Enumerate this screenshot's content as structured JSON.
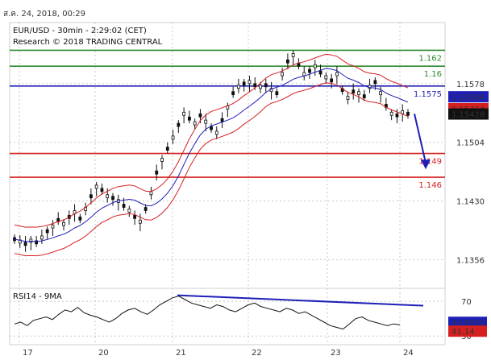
{
  "header": {
    "date_text": "ส.ค. 24, 2018, 00:29",
    "title": "EUR/USD - 30min - 2:29:02 (CET)",
    "subtitle": "Research © 2018 TRADING CENTRAL"
  },
  "colors": {
    "green": "#2e8b2e",
    "blue": "#1f1fb8",
    "red": "#d62020",
    "grid": "#c8c8c8",
    "candles": "#111111"
  },
  "chart_data": {
    "type": "candlestick",
    "price_axis": {
      "ticks": [
        "1.1578",
        "1.1504",
        "1.1430",
        "1.1356"
      ],
      "ylim": [
        1.132,
        1.1655
      ]
    },
    "x_axis": {
      "labels": [
        "17",
        "20",
        "21",
        "22",
        "23",
        "24"
      ]
    },
    "levels": [
      {
        "label": "1.162",
        "value": 1.162,
        "color": "green"
      },
      {
        "label": "1.16",
        "value": 1.16,
        "color": "green"
      },
      {
        "label": "1.1575",
        "value": 1.1575,
        "color": "blue"
      },
      {
        "label": "1.149",
        "value": 1.149,
        "color": "red"
      },
      {
        "label": "1.146",
        "value": 1.146,
        "color": "red"
      }
    ],
    "price_badges": [
      {
        "label": "1.15584",
        "value": 1.15584,
        "bg": "#1f1fb8",
        "fg": "#ffffff"
      },
      {
        "label": "1.15464",
        "value": 1.15464,
        "bg": "#d62020",
        "fg": "#ffffff"
      },
      {
        "label": "1.15428",
        "value": 1.15428,
        "bg": "#111111",
        "fg": "#ffffff"
      }
    ],
    "close_series": [
      1.1382,
      1.1379,
      1.1376,
      1.138,
      1.1378,
      1.1384,
      1.1392,
      1.1398,
      1.1406,
      1.1401,
      1.141,
      1.1416,
      1.1408,
      1.142,
      1.1436,
      1.1448,
      1.1444,
      1.1436,
      1.1434,
      1.143,
      1.1424,
      1.1418,
      1.141,
      1.1404,
      1.142,
      1.144,
      1.1466,
      1.1482,
      1.1496,
      1.151,
      1.1526,
      1.154,
      1.1534,
      1.1528,
      1.1538,
      1.153,
      1.1522,
      1.1516,
      1.1532,
      1.1548,
      1.1566,
      1.1574,
      1.1578,
      1.158,
      1.1576,
      1.1574,
      1.1576,
      1.157,
      1.1566,
      1.159,
      1.1606,
      1.1614,
      1.1602,
      1.159,
      1.1594,
      1.16,
      1.1592,
      1.1586,
      1.1582,
      1.159,
      1.157,
      1.156,
      1.1568,
      1.1566,
      1.1562,
      1.1574,
      1.158,
      1.1566,
      1.155,
      1.154,
      1.1538,
      1.1542,
      1.154
    ],
    "forecast": {
      "from": 1.154,
      "to": 1.1472
    },
    "rsi": {
      "label": "RSI14 - 9MA",
      "ticks": [
        "70",
        "30"
      ],
      "ylim": [
        20,
        85
      ],
      "badges": [
        {
          "label": "43.9522",
          "value": 43.9522,
          "bg": "#1f1fb8",
          "fg": "#ffffff"
        },
        {
          "label": "41.14",
          "value": 41.14,
          "bg": "#d62020",
          "fg": "#ffffff"
        }
      ],
      "series": [
        44,
        46,
        42,
        48,
        50,
        52,
        49,
        55,
        60,
        58,
        63,
        57,
        54,
        52,
        49,
        46,
        50,
        56,
        60,
        62,
        58,
        55,
        60,
        66,
        70,
        74,
        76,
        72,
        68,
        66,
        64,
        62,
        66,
        64,
        60,
        58,
        62,
        66,
        68,
        64,
        62,
        60,
        58,
        62,
        60,
        56,
        58,
        54,
        50,
        46,
        42,
        40,
        38,
        44,
        50,
        52,
        48,
        46,
        44,
        42,
        44,
        43
      ]
    }
  }
}
